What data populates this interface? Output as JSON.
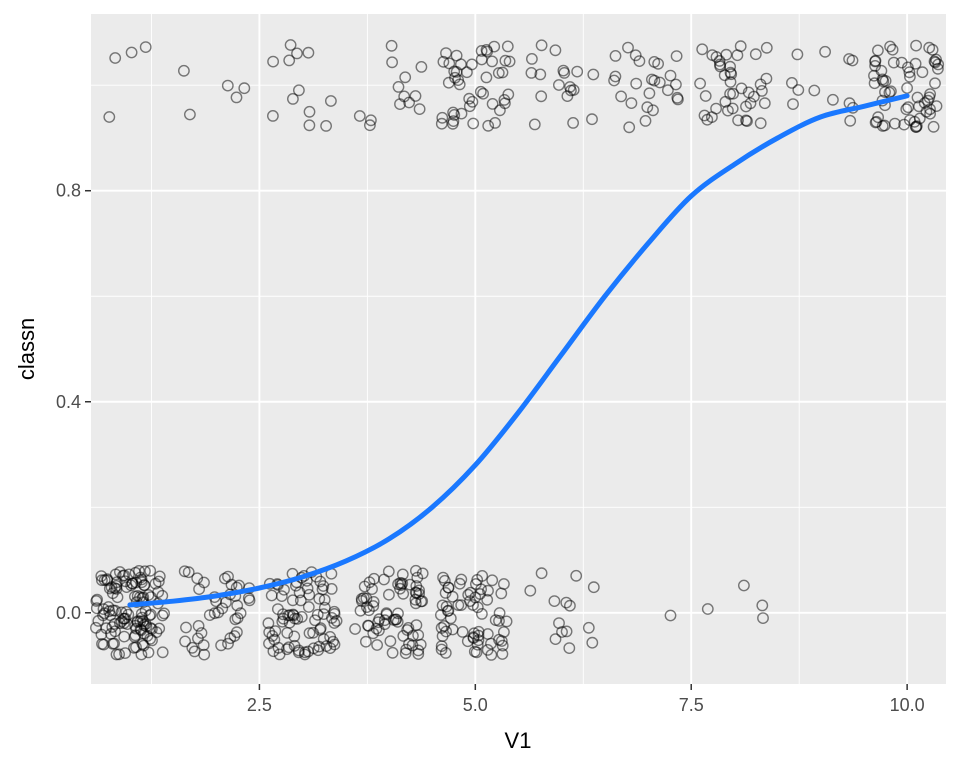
{
  "chart_data": {
    "type": "scatter",
    "title": "",
    "xlabel": "V1",
    "ylabel": "classn",
    "xlim": [
      0.55,
      10.45
    ],
    "ylim": [
      -0.135,
      1.135
    ],
    "x_ticks": [
      2.5,
      5.0,
      7.5,
      10.0
    ],
    "x_tick_labels": [
      "2.5",
      "5.0",
      "7.5",
      "10.0"
    ],
    "y_ticks": [
      0.0,
      0.4,
      0.8
    ],
    "y_tick_labels": [
      "0.0",
      "0.4",
      "0.8"
    ],
    "grid": true,
    "legend": "none",
    "colors": {
      "panel_background": "#ebebeb",
      "grid_line": "#ffffff",
      "point_stroke": "#000000",
      "fit_line": "#1a78ff",
      "tick_text": "#4d4d4d"
    },
    "series": [
      {
        "type": "scatter",
        "marker": "open-circle",
        "jittered": true,
        "counts_by_v1": [
          {
            "v1": 1,
            "class0": 120,
            "class1": 4
          },
          {
            "v1": 2,
            "class0": 40,
            "class1": 5
          },
          {
            "v1": 3,
            "class0": 80,
            "class1": 12
          },
          {
            "v1": 4,
            "class0": 70,
            "class1": 13
          },
          {
            "v1": 5,
            "class0": 65,
            "class1": 45
          },
          {
            "v1": 6,
            "class0": 14,
            "class1": 18
          },
          {
            "v1": 7,
            "class0": 1,
            "class1": 25
          },
          {
            "v1": 8,
            "class0": 4,
            "class1": 40
          },
          {
            "v1": 9,
            "class0": 0,
            "class1": 12
          },
          {
            "v1": 10,
            "class0": 0,
            "class1": 60
          }
        ]
      },
      {
        "type": "line",
        "curve": "logistic",
        "x": [
          1,
          1.5,
          2,
          2.5,
          3,
          3.5,
          4,
          4.5,
          5,
          5.5,
          6,
          6.5,
          7,
          7.5,
          8,
          8.5,
          9,
          9.5,
          10
        ],
        "y": [
          0.015,
          0.022,
          0.032,
          0.047,
          0.068,
          0.098,
          0.14,
          0.2,
          0.28,
          0.38,
          0.49,
          0.6,
          0.7,
          0.79,
          0.85,
          0.9,
          0.94,
          0.96,
          0.98
        ]
      }
    ]
  }
}
